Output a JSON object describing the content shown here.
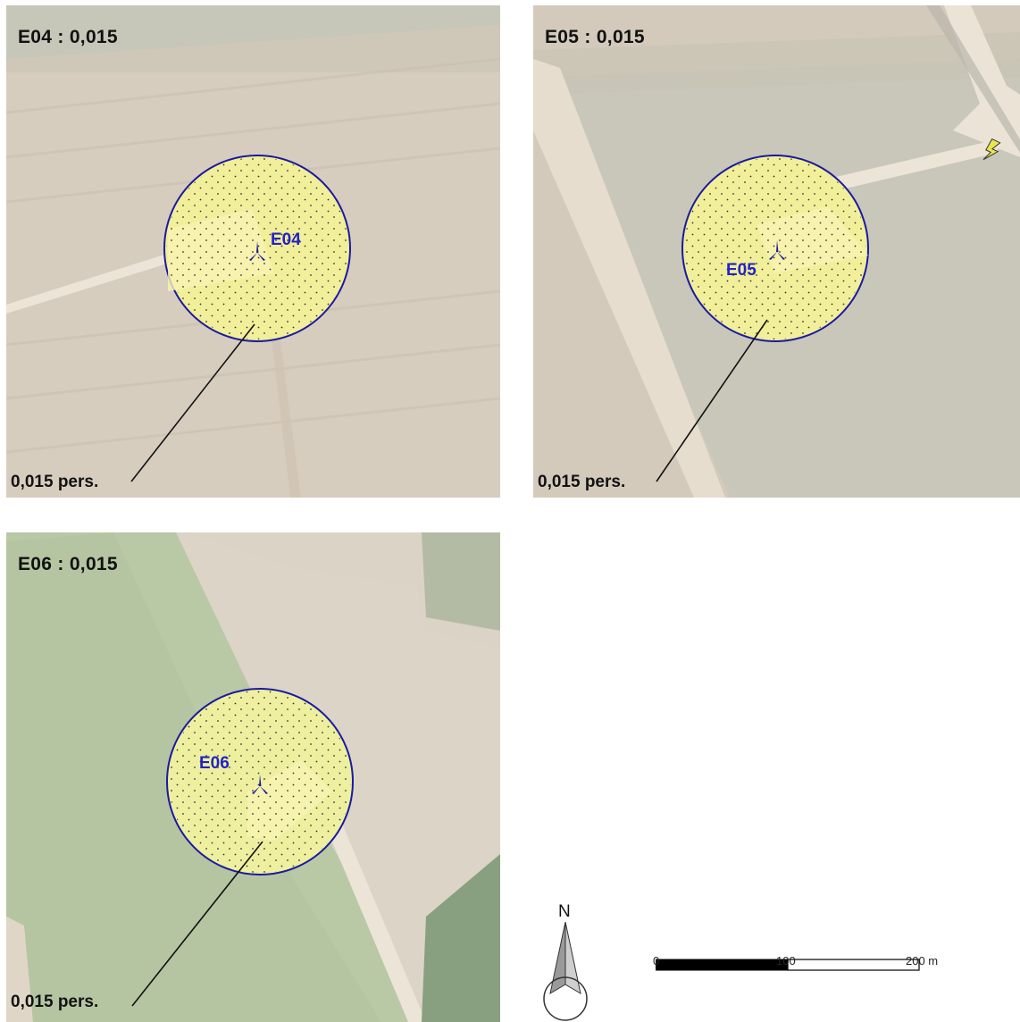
{
  "panels": [
    {
      "title": "E04 : 0,015",
      "turbine": "E04",
      "callout": "0,015 pers."
    },
    {
      "title": "E05 : 0,015",
      "turbine": "E05",
      "callout": "0,015 pers."
    },
    {
      "title": "E06 : 0,015",
      "turbine": "E06",
      "callout": "0,015 pers."
    }
  ],
  "legend": {
    "north": "N",
    "scale_labels": [
      "0",
      "100",
      "200 m"
    ]
  },
  "colors": {
    "zone_fill": "#f2ef9a",
    "zone_stroke": "#1a1aa0",
    "label": "#2323c8"
  }
}
